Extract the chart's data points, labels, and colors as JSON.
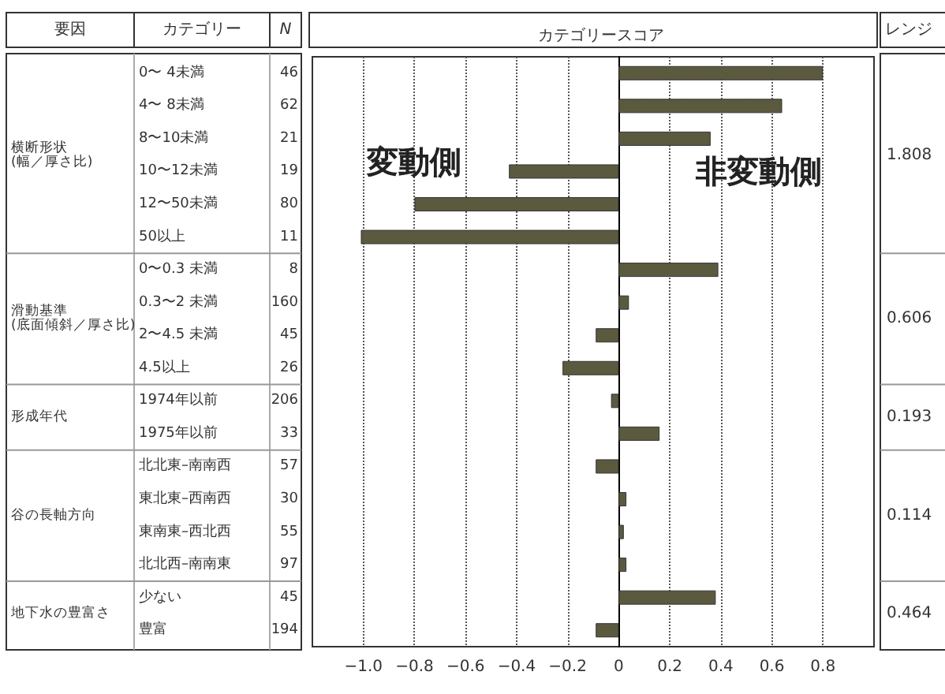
{
  "chart_data": {
    "type": "bar",
    "orientation": "horizontal",
    "title": "カテゴリースコア",
    "categories": [
      "0〜 4未満",
      "4〜 8未満",
      "8〜10未満",
      "10〜12未満",
      "12〜50未満",
      "50以上",
      "0〜0.3 未満",
      "0.3〜2 未満",
      "2〜4.5 未満",
      "4.5以上",
      "1974年以前",
      "1975年以前",
      "北北東–南南西",
      "東北東–西南西",
      "東南東–西北西",
      "北北西–南南東",
      "少ない",
      "豊富"
    ],
    "values": [
      0.8,
      0.64,
      0.36,
      -0.43,
      -0.8,
      -1.01,
      0.39,
      0.04,
      -0.09,
      -0.22,
      -0.03,
      0.16,
      -0.09,
      0.03,
      0.02,
      0.03,
      0.38,
      -0.09
    ],
    "color": "#5b5a3e",
    "xlim": [
      -1.2,
      1.0
    ],
    "xticks": [
      {
        "value": -1.0,
        "label": "−1.0"
      },
      {
        "value": -0.8,
        "label": "−0.8"
      },
      {
        "value": -0.6,
        "label": "−0.6"
      },
      {
        "value": -0.4,
        "label": "−0.4"
      },
      {
        "value": -0.2,
        "label": "−0.2"
      },
      0,
      0.2,
      0.4,
      0.6,
      0.8
    ],
    "grid": "x",
    "annotations": [
      "要因",
      "カテゴリー",
      "N",
      "レンジ",
      "変動側",
      "非変動側",
      "横断形状\n(幅／厚さ比)",
      "46",
      "62",
      "21",
      "19",
      "80",
      "11",
      "1.808",
      "滑動基準\n(底面傾斜／厚さ比)",
      "8",
      "160",
      "45",
      "26",
      "0.606",
      "形成年代",
      "206",
      "33",
      "0.193",
      "谷の長軸方向",
      "57",
      "30",
      "55",
      "97",
      "0.114",
      "地下水の豊富さ",
      "45",
      "194",
      "0.464"
    ]
  }
}
